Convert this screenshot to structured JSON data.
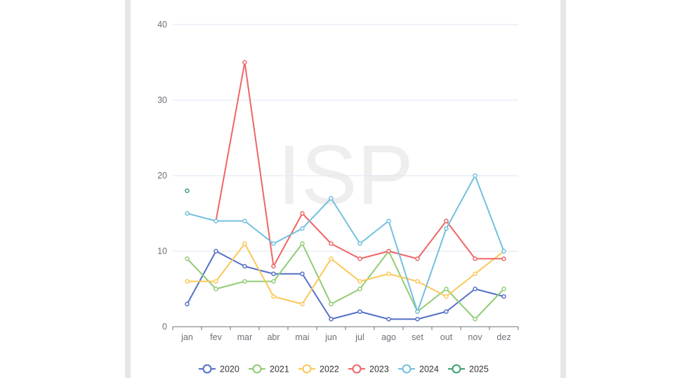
{
  "chart_data": {
    "type": "line",
    "watermark": "ISP",
    "categories": [
      "jan",
      "fev",
      "mar",
      "abr",
      "mai",
      "jun",
      "jul",
      "ago",
      "set",
      "out",
      "nov",
      "dez"
    ],
    "ylim": [
      0,
      40
    ],
    "yticks": [
      0,
      10,
      20,
      30,
      40
    ],
    "grid": true,
    "legend_position": "bottom",
    "series": [
      {
        "name": "2020",
        "color": "#5470c6",
        "values": [
          3,
          10,
          8,
          7,
          7,
          1,
          2,
          1,
          1,
          2,
          5,
          4
        ]
      },
      {
        "name": "2021",
        "color": "#91cc75",
        "values": [
          9,
          5,
          6,
          6,
          11,
          3,
          5,
          10,
          2,
          5,
          1,
          5
        ]
      },
      {
        "name": "2022",
        "color": "#fac858",
        "values": [
          6,
          6,
          11,
          4,
          3,
          9,
          6,
          7,
          6,
          4,
          7,
          10
        ]
      },
      {
        "name": "2023",
        "color": "#ee6666",
        "values": [
          null,
          14,
          35,
          8,
          15,
          11,
          9,
          10,
          9,
          14,
          9,
          9
        ]
      },
      {
        "name": "2024",
        "color": "#73c0de",
        "values": [
          15,
          14,
          14,
          11,
          13,
          17,
          11,
          14,
          2,
          13,
          20,
          10
        ]
      },
      {
        "name": "2025",
        "color": "#3ba272",
        "values": [
          18,
          null,
          null,
          null,
          null,
          null,
          null,
          null,
          null,
          null,
          null,
          null
        ]
      }
    ]
  }
}
